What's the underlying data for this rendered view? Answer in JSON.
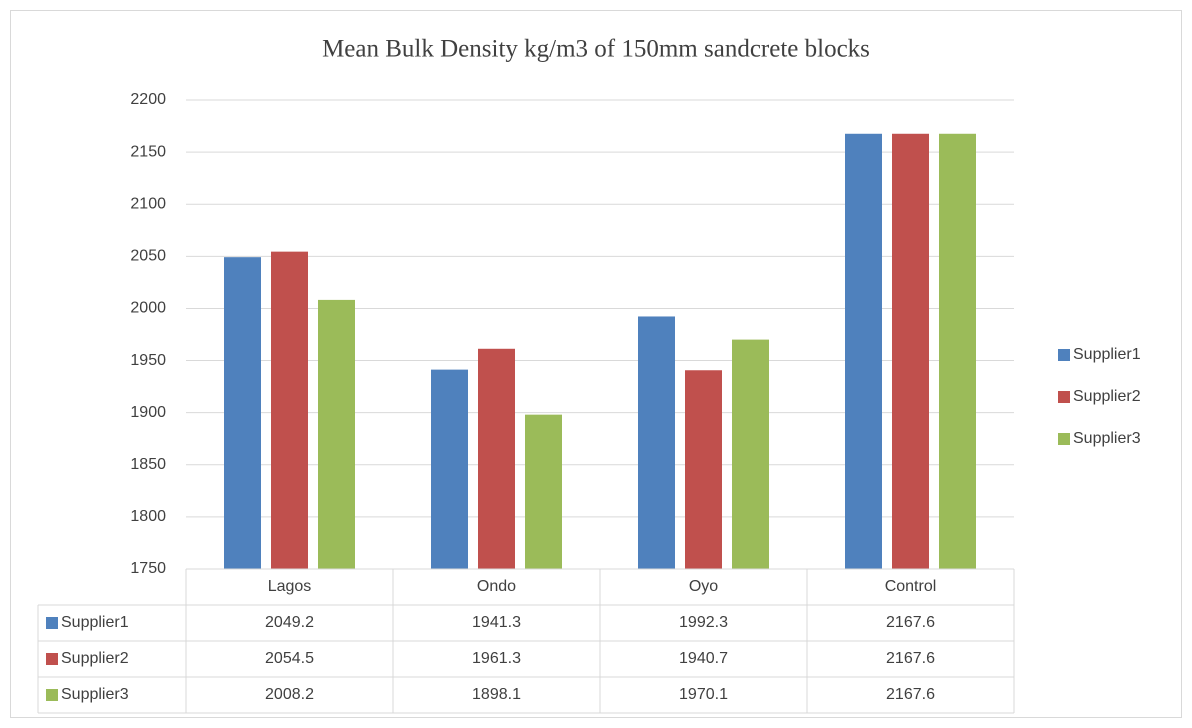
{
  "chart_data": {
    "type": "bar",
    "title": "Mean Bulk Density kg/m3 of 150mm sandcrete blocks",
    "categories": [
      "Lagos",
      "Ondo",
      "Oyo",
      "Control"
    ],
    "series": [
      {
        "name": "Supplier1",
        "color": "#4f81bd",
        "values": [
          2049.2,
          1941.3,
          1992.3,
          2167.6
        ]
      },
      {
        "name": "Supplier2",
        "color": "#c0504d",
        "values": [
          2054.5,
          1961.3,
          1940.7,
          2167.6
        ]
      },
      {
        "name": "Supplier3",
        "color": "#9bbb59",
        "values": [
          2008.2,
          1898.1,
          1970.1,
          2167.6
        ]
      }
    ],
    "ylim": [
      1750,
      2200
    ],
    "yticks": [
      1750,
      1800,
      1850,
      1900,
      1950,
      2000,
      2050,
      2100,
      2150,
      2200
    ],
    "grid": true,
    "legend": "right",
    "data_table": true
  }
}
